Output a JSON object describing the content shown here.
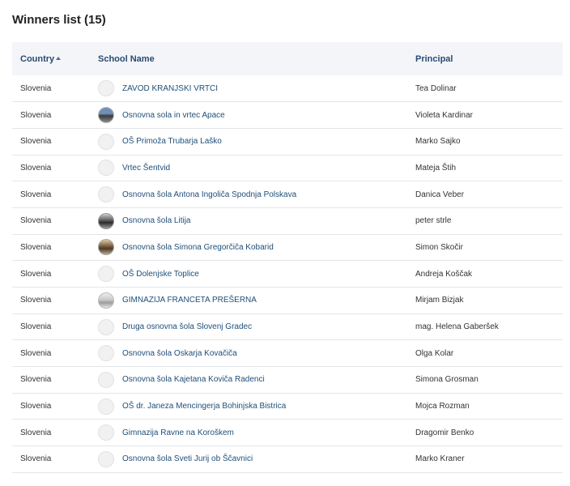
{
  "title": "Winners list (15)",
  "columns": {
    "country": "Country",
    "school": "School Name",
    "principal": "Principal"
  },
  "sort": {
    "column": "country",
    "direction": "ascending",
    "icon": "sort-up-icon"
  },
  "colors": {
    "header_bg": "#f3f5f9",
    "header_text": "#2a4a73",
    "link": "#1f4e79",
    "row_border": "#e3e6ea"
  },
  "rows": [
    {
      "country": "Slovenia",
      "school": "ZAVOD KRANJSKI VRTCI",
      "principal": "Tea Dolinar",
      "thumb": "placeholder"
    },
    {
      "country": "Slovenia",
      "school": "Osnovna sola in vrtec Apace",
      "principal": "Violeta Kardinar",
      "thumb": "photo-1"
    },
    {
      "country": "Slovenia",
      "school": "OŠ Primoža Trubarja Laško",
      "principal": "Marko Sajko",
      "thumb": "placeholder"
    },
    {
      "country": "Slovenia",
      "school": "Vrtec Šentvid",
      "principal": "Mateja Štih",
      "thumb": "placeholder"
    },
    {
      "country": "Slovenia",
      "school": "Osnovna šola Antona Ingoliča Spodnja Polskava",
      "principal": "Danica Veber",
      "thumb": "placeholder"
    },
    {
      "country": "Slovenia",
      "school": "Osnovna šola Litija",
      "principal": "peter strle",
      "thumb": "photo-2"
    },
    {
      "country": "Slovenia",
      "school": "Osnovna šola Simona Gregorčiča Kobarid",
      "principal": "Simon Skočir",
      "thumb": "photo-3"
    },
    {
      "country": "Slovenia",
      "school": "OŠ Dolenjske Toplice",
      "principal": "Andreja Koščak",
      "thumb": "placeholder"
    },
    {
      "country": "Slovenia",
      "school": "GIMNAZIJA FRANCETA PREŠERNA",
      "principal": "Mirjam Bizjak",
      "thumb": "photo-4"
    },
    {
      "country": "Slovenia",
      "school": "Druga osnovna šola Slovenj Gradec",
      "principal": "mag. Helena Gaberšek",
      "thumb": "placeholder"
    },
    {
      "country": "Slovenia",
      "school": "Osnovna šola Oskarja Kovačiča",
      "principal": "Olga Kolar",
      "thumb": "placeholder"
    },
    {
      "country": "Slovenia",
      "school": "Osnovna šola Kajetana Koviča Radenci",
      "principal": "Simona Grosman",
      "thumb": "placeholder"
    },
    {
      "country": "Slovenia",
      "school": "OŠ dr. Janeza Mencingerja Bohinjska Bistrica",
      "principal": "Mojca Rozman",
      "thumb": "placeholder"
    },
    {
      "country": "Slovenia",
      "school": "Gimnazija Ravne na Koroškem",
      "principal": "Dragomir Benko",
      "thumb": "placeholder"
    },
    {
      "country": "Slovenia",
      "school": "Osnovna šola Sveti Jurij ob Ščavnici",
      "principal": "Marko Kraner",
      "thumb": "placeholder"
    }
  ]
}
